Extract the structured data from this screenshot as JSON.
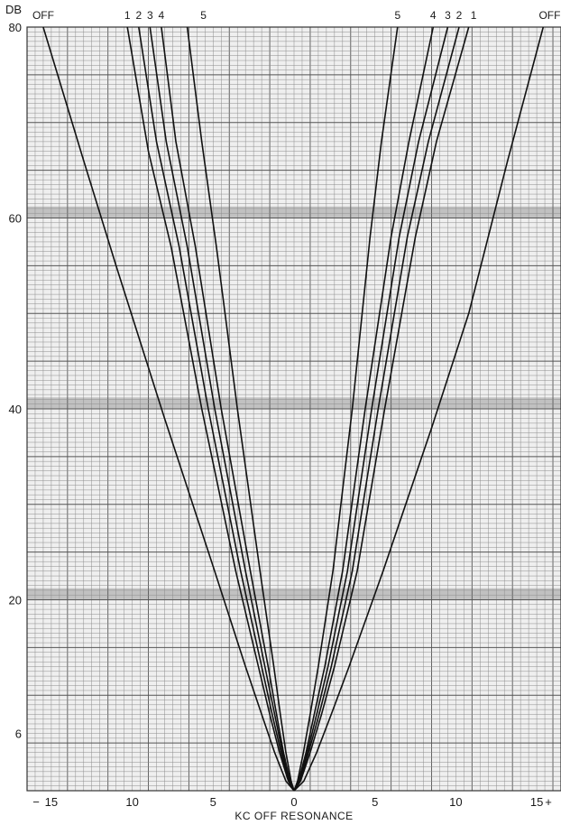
{
  "chart_data": {
    "type": "line",
    "title": "",
    "xlabel": "KC OFF RESONANCE",
    "ylabel": "DB",
    "xlim": [
      -16.5,
      16.5
    ],
    "ylim": [
      0,
      80
    ],
    "grid": true,
    "x_ticks": [
      {
        "value": -15,
        "label": "15"
      },
      {
        "value": -10,
        "label": "10"
      },
      {
        "value": -5,
        "label": "5"
      },
      {
        "value": 0,
        "label": "0"
      },
      {
        "value": 5,
        "label": "5"
      },
      {
        "value": 10,
        "label": "10"
      },
      {
        "value": 15,
        "label": "15"
      }
    ],
    "x_end_labels": {
      "left": "−",
      "right": "+"
    },
    "y_ticks": [
      {
        "value": 6,
        "label": "6"
      },
      {
        "value": 20,
        "label": "20"
      },
      {
        "value": 40,
        "label": "40"
      },
      {
        "value": 60,
        "label": "60"
      },
      {
        "value": 80,
        "label": "80"
      }
    ],
    "series": [
      {
        "name": "OFF",
        "left": [
          [
            0,
            0
          ],
          [
            -0.5,
            1
          ],
          [
            -1.2,
            4
          ],
          [
            -2,
            8
          ],
          [
            -3,
            13
          ],
          [
            -5,
            23.5
          ],
          [
            -8,
            39
          ],
          [
            -11,
            55
          ],
          [
            -13,
            66
          ],
          [
            -15.5,
            80
          ]
        ],
        "right": [
          [
            0,
            0
          ],
          [
            0.6,
            1
          ],
          [
            1.4,
            4
          ],
          [
            2.3,
            8
          ],
          [
            3.4,
            13
          ],
          [
            5.5,
            23
          ],
          [
            8.5,
            38
          ],
          [
            10.8,
            50
          ],
          [
            13.2,
            66
          ],
          [
            15.4,
            80
          ]
        ]
      },
      {
        "name": "1",
        "left": [
          [
            0,
            0
          ],
          [
            -0.35,
            1
          ],
          [
            -0.9,
            4
          ],
          [
            -1.5,
            8
          ],
          [
            -2.2,
            13
          ],
          [
            -3.6,
            23
          ],
          [
            -5.7,
            40
          ],
          [
            -7.6,
            57
          ],
          [
            -9,
            67
          ],
          [
            -10.3,
            80
          ]
        ],
        "right": [
          [
            0,
            0
          ],
          [
            0.4,
            1
          ],
          [
            1,
            4
          ],
          [
            1.7,
            8
          ],
          [
            2.5,
            13
          ],
          [
            3.9,
            23
          ],
          [
            5.6,
            40
          ],
          [
            7.5,
            58
          ],
          [
            8.8,
            68
          ],
          [
            10.8,
            80
          ]
        ]
      },
      {
        "name": "2",
        "left": [
          [
            0,
            0
          ],
          [
            -0.3,
            1
          ],
          [
            -0.8,
            4
          ],
          [
            -1.35,
            8
          ],
          [
            -2,
            13
          ],
          [
            -3.3,
            23
          ],
          [
            -5.3,
            40
          ],
          [
            -7.1,
            57
          ],
          [
            -8.5,
            68
          ],
          [
            -9.6,
            80
          ]
        ],
        "right": [
          [
            0,
            0
          ],
          [
            0.35,
            1
          ],
          [
            0.9,
            4
          ],
          [
            1.55,
            8
          ],
          [
            2.3,
            13
          ],
          [
            3.6,
            23
          ],
          [
            5.2,
            40
          ],
          [
            7,
            58
          ],
          [
            8.3,
            68
          ],
          [
            10.2,
            80
          ]
        ]
      },
      {
        "name": "3",
        "left": [
          [
            0,
            0
          ],
          [
            -0.27,
            1
          ],
          [
            -0.72,
            4
          ],
          [
            -1.2,
            8
          ],
          [
            -1.8,
            13
          ],
          [
            -3,
            23
          ],
          [
            -4.9,
            40
          ],
          [
            -6.6,
            57
          ],
          [
            -7.9,
            68
          ],
          [
            -8.9,
            80
          ]
        ],
        "right": [
          [
            0,
            0
          ],
          [
            0.32,
            1
          ],
          [
            0.82,
            4
          ],
          [
            1.4,
            8
          ],
          [
            2.1,
            13
          ],
          [
            3.3,
            23
          ],
          [
            4.8,
            40
          ],
          [
            6.5,
            58
          ],
          [
            7.7,
            68
          ],
          [
            9.5,
            80
          ]
        ]
      },
      {
        "name": "4",
        "left": [
          [
            0,
            0
          ],
          [
            -0.24,
            1
          ],
          [
            -0.65,
            4
          ],
          [
            -1.08,
            8
          ],
          [
            -1.6,
            13
          ],
          [
            -2.7,
            23
          ],
          [
            -4.5,
            40
          ],
          [
            -6.1,
            57
          ],
          [
            -7.3,
            68
          ],
          [
            -8.2,
            80
          ]
        ],
        "right": [
          [
            0,
            0
          ],
          [
            0.28,
            1
          ],
          [
            0.74,
            4
          ],
          [
            1.25,
            8
          ],
          [
            1.9,
            13
          ],
          [
            3,
            23
          ],
          [
            4.4,
            40
          ],
          [
            6,
            58
          ],
          [
            7.1,
            68
          ],
          [
            8.6,
            80
          ]
        ]
      },
      {
        "name": "5",
        "left": [
          [
            0,
            0
          ],
          [
            -0.18,
            1
          ],
          [
            -0.5,
            4
          ],
          [
            -0.85,
            8
          ],
          [
            -1.25,
            13
          ],
          [
            -2.1,
            23
          ],
          [
            -3.5,
            40
          ],
          [
            -4.8,
            57
          ],
          [
            -5.7,
            68
          ],
          [
            -6.6,
            80
          ]
        ],
        "right": [
          [
            0,
            0
          ],
          [
            0.22,
            1
          ],
          [
            0.58,
            4
          ],
          [
            1,
            8
          ],
          [
            1.5,
            13
          ],
          [
            2.4,
            23
          ],
          [
            3.6,
            40
          ],
          [
            4.7,
            58
          ],
          [
            5.4,
            68
          ],
          [
            6.4,
            80
          ]
        ]
      }
    ],
    "top_labels": [
      {
        "text": "OFF",
        "x": -15.5
      },
      {
        "text": "1",
        "x": -10.3
      },
      {
        "text": "2",
        "x": -9.6
      },
      {
        "text": "3",
        "x": -8.9
      },
      {
        "text": "4",
        "x": -8.2
      },
      {
        "text": "5",
        "x": -5.6
      },
      {
        "text": "5",
        "x": 6.4
      },
      {
        "text": "4",
        "x": 8.6
      },
      {
        "text": "3",
        "x": 9.5
      },
      {
        "text": "2",
        "x": 10.2
      },
      {
        "text": "1",
        "x": 11.1
      },
      {
        "text": "OFF",
        "x": 15.8
      }
    ],
    "bands": [
      {
        "y_from": 60,
        "y_to": 61.2
      },
      {
        "y_from": 40,
        "y_to": 41.2
      },
      {
        "y_from": 20,
        "y_to": 21.2
      }
    ]
  }
}
